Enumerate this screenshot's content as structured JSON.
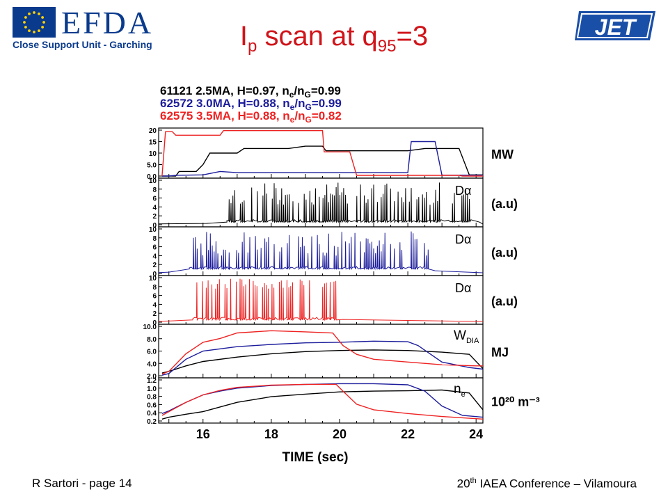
{
  "header": {
    "efda_wordmark": "EFDA",
    "efda_subtitle": "Close Support Unit - Garching",
    "jet_wordmark": "JET",
    "title_main": "I",
    "title_sub_p": "p",
    "title_mid": " scan at q",
    "title_sub_95": "95",
    "title_end": "=3"
  },
  "colors": {
    "title": "#d0141a",
    "shot_61121": "#000000",
    "shot_62572": "#1c1c9c",
    "shot_62575": "#ee2222",
    "logo_blue": "#0a3a8c",
    "jet_blue": "#1a4fa8"
  },
  "legend": [
    {
      "shot": "61121",
      "ip": "2.5MA",
      "h": "H=0.97",
      "nratio": "0.99",
      "color": "#000000"
    },
    {
      "shot": "62572",
      "ip": "3.0MA",
      "h": "H=0.88",
      "nratio": "0.99",
      "color": "#1c1c9c"
    },
    {
      "shot": "62575",
      "ip": "3.5MA",
      "h": "H=0.88",
      "nratio": "0.82",
      "color": "#ee2222"
    }
  ],
  "chart_data": {
    "type": "line",
    "xlabel": "TIME (sec)",
    "xlim": [
      14.7,
      24.2
    ],
    "xticks": [
      16,
      18,
      20,
      22,
      24
    ],
    "panels": [
      {
        "id": "power",
        "unit": "MW",
        "yticks": [
          "20",
          "15",
          "10",
          "5.0",
          "0.0"
        ],
        "ylim": [
          0,
          20
        ],
        "series": [
          {
            "shot": "61121",
            "x": [
              14.8,
              15.2,
              15.3,
              15.8,
              16.0,
              16.2,
              17.0,
              17.2,
              18.5,
              19.0,
              19.5,
              19.6,
              22.0,
              22.5,
              23.5,
              23.8,
              24.2
            ],
            "y": [
              0,
              0,
              2,
              2,
              5,
              10,
              10,
              12,
              12,
              13,
              13,
              11,
              11,
              12,
              12,
              0.5,
              0.5
            ]
          },
          {
            "shot": "62572",
            "x": [
              14.8,
              15.0,
              15.2,
              16.0,
              16.5,
              17.0,
              19.6,
              22.0,
              22.1,
              22.8,
              23.0,
              24.2
            ],
            "y": [
              0,
              0,
              0.3,
              0.5,
              2,
              1.5,
              1.5,
              1.5,
              15,
              15,
              0.4,
              0.4
            ]
          },
          {
            "shot": "62575",
            "x": [
              14.8,
              14.9,
              15.1,
              15.2,
              16.5,
              16.6,
              19.5,
              19.55,
              20.3,
              20.5,
              23.5,
              23.6,
              24.2
            ],
            "y": [
              0,
              19.3,
              19.3,
              17.8,
              17.8,
              19.8,
              19.8,
              10.5,
              10.5,
              0.3,
              0.3,
              0,
              0
            ]
          }
        ]
      },
      {
        "id": "dalpha_61121",
        "unit": "(a.u)",
        "signal": "Dα",
        "yticks": [
          "10",
          "8",
          "6",
          "4",
          "2",
          "0"
        ],
        "ylim": [
          0,
          10
        ],
        "elm_window": [
          16.7,
          23.9
        ],
        "elm_peak": [
          4.5,
          9.5
        ],
        "baseline": 0.6,
        "series_shot": "61121"
      },
      {
        "id": "dalpha_62572",
        "unit": "(a.u)",
        "signal": "Dα",
        "yticks": [
          "10",
          "8",
          "6",
          "4",
          "2",
          "0"
        ],
        "ylim": [
          0,
          10
        ],
        "elm_window": [
          15.6,
          22.6
        ],
        "elm_peak": [
          4,
          9.5
        ],
        "baseline": 1.0,
        "series_shot": "62572"
      },
      {
        "id": "dalpha_62575",
        "unit": "(a.u)",
        "signal": "Dα",
        "yticks": [
          "10",
          "8",
          "6",
          "4",
          "2",
          "0"
        ],
        "ylim": [
          0,
          10
        ],
        "elm_window": [
          15.7,
          19.9
        ],
        "elm_peak": [
          7.5,
          9.8
        ],
        "baseline": 0.5,
        "series_shot": "62575"
      },
      {
        "id": "wdia",
        "unit": "MJ",
        "label": "W",
        "label_sub": "DIA",
        "yticks": [
          "10.0",
          "8.0",
          "6.0",
          "4.0",
          "2.0"
        ],
        "ylim": [
          1.5,
          10.5
        ],
        "series": [
          {
            "shot": "61121",
            "x": [
              14.8,
              15.0,
              15.5,
              16.0,
              17.0,
              18.0,
              19.0,
              20.0,
              21.0,
              22.0,
              23.0,
              23.8,
              24.2
            ],
            "y": [
              2.0,
              2.3,
              3.3,
              4.1,
              4.9,
              5.5,
              5.9,
              6.1,
              6.2,
              6.1,
              5.8,
              5.4,
              2.8
            ]
          },
          {
            "shot": "62572",
            "x": [
              14.8,
              15.0,
              15.5,
              16.0,
              17.0,
              18.0,
              19.0,
              20.0,
              21.0,
              22.0,
              22.3,
              23.0,
              23.8,
              24.2
            ],
            "y": [
              1.6,
              1.9,
              4.5,
              6.0,
              6.8,
              7.2,
              7.5,
              7.6,
              7.8,
              7.7,
              7.0,
              4.0,
              3.0,
              2.7
            ]
          },
          {
            "shot": "62575",
            "x": [
              14.8,
              15.0,
              15.5,
              16.0,
              16.5,
              17.0,
              18.0,
              19.0,
              19.8,
              20.1,
              20.5,
              21.0,
              22.0,
              23.0,
              24.0,
              24.2
            ],
            "y": [
              1.8,
              2.3,
              5.5,
              7.6,
              8.3,
              9.3,
              9.7,
              9.5,
              9.3,
              7.0,
              5.4,
              4.5,
              4.0,
              3.5,
              3.3,
              3.3
            ]
          }
        ]
      },
      {
        "id": "ne",
        "unit": "10²⁰ m⁻³",
        "label": "n",
        "label_sub": "e",
        "yticks": [
          "1.2",
          "1.0",
          "0.8",
          "0.6",
          "0.4",
          "0.2"
        ],
        "ylim": [
          0.15,
          1.25
        ],
        "series": [
          {
            "shot": "61121",
            "x": [
              14.8,
              15.0,
              15.5,
              16.0,
              17.0,
              18.0,
              19.0,
              20.0,
              21.0,
              22.0,
              23.0,
              23.8,
              24.2
            ],
            "y": [
              0.2,
              0.25,
              0.33,
              0.4,
              0.65,
              0.8,
              0.87,
              0.93,
              0.95,
              0.96,
              0.98,
              0.9,
              0.45
            ]
          },
          {
            "shot": "62572",
            "x": [
              14.8,
              15.0,
              15.5,
              16.0,
              16.5,
              17.0,
              18.0,
              19.0,
              20.0,
              21.0,
              22.0,
              22.5,
              23.0,
              23.6,
              24.2
            ],
            "y": [
              0.35,
              0.42,
              0.65,
              0.85,
              0.95,
              1.03,
              1.1,
              1.13,
              1.15,
              1.15,
              1.12,
              0.95,
              0.55,
              0.3,
              0.25
            ]
          },
          {
            "shot": "62575",
            "x": [
              14.8,
              15.0,
              15.5,
              16.0,
              16.5,
              17.0,
              18.0,
              19.0,
              19.9,
              20.1,
              20.5,
              21.0,
              22.0,
              23.0,
              24.2
            ],
            "y": [
              0.3,
              0.4,
              0.65,
              0.85,
              0.97,
              1.05,
              1.11,
              1.13,
              1.13,
              0.95,
              0.6,
              0.45,
              0.35,
              0.27,
              0.2
            ]
          }
        ]
      }
    ]
  },
  "footer": {
    "left": "R Sartori  - page 14",
    "right_prefix": "20",
    "right_sup": "th",
    "right_rest": " IAEA Conference – Vilamoura"
  }
}
